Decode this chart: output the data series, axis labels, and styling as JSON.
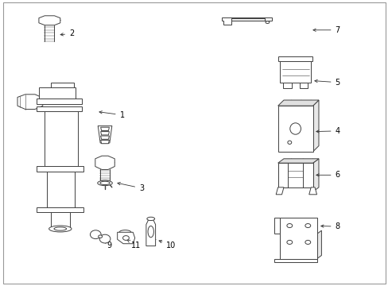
{
  "background_color": "#ffffff",
  "line_color": "#404040",
  "label_color": "#000000",
  "fig_width": 4.89,
  "fig_height": 3.6,
  "dpi": 100,
  "lw": 0.7,
  "label_fontsize": 7,
  "parts_labels": [
    [
      1,
      0.305,
      0.595,
      0.255,
      0.61
    ],
    [
      2,
      0.175,
      0.885,
      0.138,
      0.878
    ],
    [
      3,
      0.355,
      0.345,
      0.31,
      0.355
    ],
    [
      4,
      0.86,
      0.54,
      0.81,
      0.54
    ],
    [
      5,
      0.86,
      0.71,
      0.81,
      0.71
    ],
    [
      6,
      0.86,
      0.385,
      0.81,
      0.385
    ],
    [
      7,
      0.86,
      0.895,
      0.79,
      0.895
    ],
    [
      8,
      0.86,
      0.205,
      0.81,
      0.205
    ],
    [
      9,
      0.27,
      0.148,
      0.28,
      0.168
    ],
    [
      10,
      0.42,
      0.148,
      0.388,
      0.165
    ],
    [
      11,
      0.33,
      0.148,
      0.327,
      0.168
    ]
  ]
}
